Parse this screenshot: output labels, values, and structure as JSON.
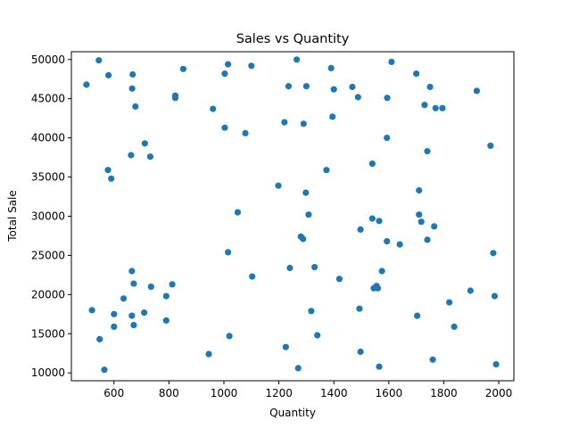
{
  "chart_data": {
    "type": "scatter",
    "title": "Sales vs Quantity",
    "xlabel": "Quantity",
    "ylabel": "Total Sale",
    "xlim": [
      445,
      2055
    ],
    "ylim": [
      9000,
      51000
    ],
    "xticks": [
      600,
      800,
      1000,
      1200,
      1400,
      1600,
      1800,
      2000
    ],
    "yticks": [
      10000,
      15000,
      20000,
      25000,
      30000,
      35000,
      40000,
      45000,
      50000
    ],
    "grid": false,
    "color": "#1f77b4",
    "points": [
      [
        500,
        46800
      ],
      [
        545,
        49900
      ],
      [
        580,
        48000
      ],
      [
        668,
        48100
      ],
      [
        666,
        46300
      ],
      [
        678,
        44000
      ],
      [
        823,
        45400
      ],
      [
        823,
        45100
      ],
      [
        852,
        48800
      ],
      [
        1003,
        48200
      ],
      [
        1015,
        49400
      ],
      [
        1100,
        49200
      ],
      [
        1265,
        50000
      ],
      [
        1235,
        46600
      ],
      [
        1300,
        46600
      ],
      [
        1390,
        48900
      ],
      [
        1400,
        46200
      ],
      [
        1467,
        46500
      ],
      [
        1488,
        45200
      ],
      [
        1594,
        45100
      ],
      [
        1610,
        49700
      ],
      [
        1700,
        48200
      ],
      [
        1750,
        46500
      ],
      [
        1730,
        44200
      ],
      [
        1770,
        43800
      ],
      [
        1795,
        43800
      ],
      [
        1920,
        46000
      ],
      [
        960,
        43700
      ],
      [
        1395,
        42700
      ],
      [
        1220,
        42000
      ],
      [
        1290,
        41800
      ],
      [
        1003,
        41300
      ],
      [
        1078,
        40600
      ],
      [
        1593,
        40000
      ],
      [
        712,
        39300
      ],
      [
        662,
        37800
      ],
      [
        732,
        37600
      ],
      [
        1740,
        38300
      ],
      [
        1970,
        39000
      ],
      [
        578,
        35900
      ],
      [
        590,
        34800
      ],
      [
        1373,
        35900
      ],
      [
        1540,
        36700
      ],
      [
        1198,
        33900
      ],
      [
        1298,
        33000
      ],
      [
        1710,
        33300
      ],
      [
        1050,
        30500
      ],
      [
        1308,
        30200
      ],
      [
        1710,
        30200
      ],
      [
        1540,
        29700
      ],
      [
        1565,
        29400
      ],
      [
        1718,
        29300
      ],
      [
        1765,
        28700
      ],
      [
        1497,
        28300
      ],
      [
        1280,
        27400
      ],
      [
        1288,
        27100
      ],
      [
        1593,
        26800
      ],
      [
        1640,
        26400
      ],
      [
        1740,
        27000
      ],
      [
        1015,
        25400
      ],
      [
        1980,
        25300
      ],
      [
        665,
        23000
      ],
      [
        1240,
        23400
      ],
      [
        1330,
        23500
      ],
      [
        1575,
        23000
      ],
      [
        1103,
        22300
      ],
      [
        1420,
        22000
      ],
      [
        672,
        21400
      ],
      [
        735,
        21000
      ],
      [
        812,
        21300
      ],
      [
        1545,
        20800
      ],
      [
        1555,
        21100
      ],
      [
        1560,
        20800
      ],
      [
        635,
        19500
      ],
      [
        790,
        19800
      ],
      [
        1897,
        20500
      ],
      [
        1985,
        19800
      ],
      [
        1820,
        19000
      ],
      [
        520,
        18000
      ],
      [
        600,
        17500
      ],
      [
        665,
        17300
      ],
      [
        710,
        17700
      ],
      [
        1318,
        17900
      ],
      [
        1493,
        18200
      ],
      [
        1703,
        17300
      ],
      [
        790,
        16700
      ],
      [
        600,
        15900
      ],
      [
        672,
        16100
      ],
      [
        1838,
        15900
      ],
      [
        548,
        14300
      ],
      [
        1020,
        14700
      ],
      [
        1340,
        14800
      ],
      [
        1225,
        13300
      ],
      [
        945,
        12400
      ],
      [
        1497,
        12700
      ],
      [
        1760,
        11700
      ],
      [
        1990,
        11100
      ],
      [
        565,
        10400
      ],
      [
        1270,
        10600
      ],
      [
        1565,
        10800
      ]
    ]
  }
}
